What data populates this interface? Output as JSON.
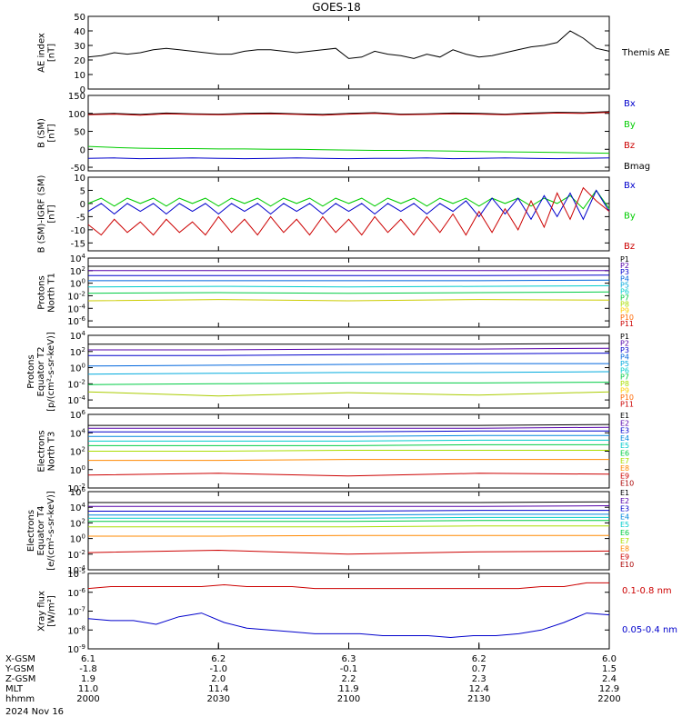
{
  "title": "GOES-18",
  "panels": [
    {
      "id": "ae",
      "ylabel": [
        "AE index",
        "[nT]"
      ],
      "ylim": [
        0,
        50
      ],
      "log": false,
      "yticks": [
        "0",
        "10",
        "20",
        "30",
        "40",
        "50"
      ],
      "legend": [
        {
          "text": "Themis AE",
          "color": "#000000"
        }
      ],
      "series": [
        {
          "name": "Themis AE",
          "color": "#000000",
          "values": [
            22,
            23,
            25,
            24,
            25,
            27,
            28,
            27,
            26,
            25,
            24,
            24,
            26,
            27,
            27,
            26,
            25,
            26,
            27,
            28,
            21,
            22,
            26,
            24,
            23,
            21,
            24,
            22,
            27,
            24,
            22,
            23,
            25,
            27,
            29,
            30,
            32,
            40,
            35,
            28,
            26
          ]
        }
      ]
    },
    {
      "id": "bsm",
      "ylabel": [
        "B (SM)",
        "[nT]"
      ],
      "ylim": [
        -60,
        150
      ],
      "log": false,
      "yticks": [
        "-50",
        "0",
        "50",
        "100",
        "150"
      ],
      "legend": [
        {
          "text": "Bx",
          "color": "#0000cc"
        },
        {
          "text": "By",
          "color": "#00cc00"
        },
        {
          "text": "Bz",
          "color": "#cc0000"
        },
        {
          "text": "Bmag",
          "color": "#000000"
        }
      ],
      "series": [
        {
          "name": "Bx",
          "color": "#0000cc",
          "values": [
            -25,
            -24,
            -26,
            -25,
            -24,
            -25,
            -26,
            -25,
            -24,
            -25,
            -26,
            -25,
            -25,
            -24,
            -26,
            -25,
            -24,
            -25,
            -26,
            -25,
            -24
          ]
        },
        {
          "name": "By",
          "color": "#00cc00",
          "values": [
            8,
            5,
            3,
            2,
            2,
            1,
            1,
            0,
            0,
            -1,
            -2,
            -3,
            -3,
            -4,
            -5,
            -6,
            -7,
            -8,
            -9,
            -10,
            -11
          ]
        },
        {
          "name": "Bmag",
          "color": "#000000",
          "values": [
            98,
            100,
            97,
            101,
            99,
            98,
            100,
            101,
            99,
            97,
            100,
            102,
            98,
            99,
            101,
            100,
            98,
            101,
            103,
            102,
            105
          ]
        },
        {
          "name": "Bz",
          "color": "#cc0000",
          "values": [
            96,
            98,
            95,
            99,
            97,
            96,
            98,
            99,
            97,
            95,
            98,
            100,
            96,
            97,
            99,
            98,
            96,
            99,
            101,
            100,
            103
          ]
        }
      ]
    },
    {
      "id": "bigrf",
      "ylabel": [
        "B (SM)-IGRF (SM)",
        "[nT]"
      ],
      "ylim": [
        -18,
        10
      ],
      "log": false,
      "yticks": [
        "-15",
        "-10",
        "-5",
        "0",
        "5",
        "10"
      ],
      "legend": [
        {
          "text": "Bx",
          "color": "#0000cc"
        },
        {
          "text": "By",
          "color": "#00cc00"
        },
        {
          "text": "Bz",
          "color": "#cc0000"
        }
      ],
      "series": [
        {
          "name": "By",
          "color": "#00cc00",
          "values": [
            0,
            2,
            -1,
            2,
            0,
            2,
            -1,
            2,
            0,
            2,
            -1,
            2,
            0,
            2,
            -1,
            2,
            0,
            2,
            -1,
            2,
            0,
            2,
            -1,
            2,
            0,
            2,
            -1,
            2,
            0,
            2,
            -1,
            2,
            0,
            2,
            -1,
            2,
            0,
            3,
            -2,
            5,
            -2
          ]
        },
        {
          "name": "Bx",
          "color": "#0000cc",
          "values": [
            -3,
            0,
            -4,
            0,
            -3,
            0,
            -4,
            0,
            -3,
            0,
            -4,
            0,
            -3,
            0,
            -4,
            0,
            -3,
            0,
            -4,
            0,
            -3,
            0,
            -4,
            0,
            -3,
            0,
            -4,
            0,
            -3,
            1,
            -5,
            2,
            -4,
            2,
            -6,
            3,
            -5,
            4,
            -6,
            5,
            -3
          ]
        },
        {
          "name": "Bz",
          "color": "#cc0000",
          "values": [
            -8,
            -12,
            -6,
            -11,
            -7,
            -12,
            -6,
            -11,
            -7,
            -12,
            -5,
            -11,
            -6,
            -12,
            -5,
            -11,
            -6,
            -12,
            -5,
            -11,
            -6,
            -12,
            -5,
            -11,
            -6,
            -12,
            -5,
            -11,
            -4,
            -12,
            -3,
            -11,
            -2,
            -10,
            1,
            -9,
            4,
            -6,
            6,
            1,
            -3
          ]
        }
      ]
    },
    {
      "id": "prot_t1",
      "ylabel": [
        "Protons",
        "North T1"
      ],
      "ylim": [
        -7,
        4
      ],
      "log": true,
      "yticks": [
        "10^-6",
        "10^-4",
        "10^-2",
        "10^0",
        "10^2",
        "10^4"
      ],
      "legend": [
        {
          "text": "P1",
          "color": "#000000"
        },
        {
          "text": "P2",
          "color": "#5500aa"
        },
        {
          "text": "P3",
          "color": "#0000cc"
        },
        {
          "text": "P4",
          "color": "#0066dd"
        },
        {
          "text": "P5",
          "color": "#00aadd"
        },
        {
          "text": "P6",
          "color": "#00cccc"
        },
        {
          "text": "P7",
          "color": "#00cc44"
        },
        {
          "text": "P8",
          "color": "#aadd00"
        },
        {
          "text": "P9",
          "color": "#ffcc00"
        },
        {
          "text": "P10",
          "color": "#ff6600"
        },
        {
          "text": "P11",
          "color": "#cc0000"
        }
      ],
      "series": [
        {
          "name": "P1",
          "color": "#000000",
          "values": [
            2.7,
            2.7,
            2.7,
            2.7,
            2.7
          ]
        },
        {
          "name": "P2",
          "color": "#5500aa",
          "values": [
            2.0,
            2.0,
            2.0,
            2.0,
            2.0
          ]
        },
        {
          "name": "P3",
          "color": "#0000cc",
          "values": [
            1.2,
            1.2,
            1.2,
            1.2,
            1.3
          ]
        },
        {
          "name": "P4",
          "color": "#0066dd",
          "values": [
            0.4,
            0.4,
            0.4,
            0.4,
            0.5
          ]
        },
        {
          "name": "P5",
          "color": "#00cccc",
          "values": [
            -0.6,
            -0.5,
            -0.6,
            -0.5,
            -0.4
          ]
        },
        {
          "name": "P6",
          "color": "#00cc44",
          "values": [
            -1.6,
            -1.5,
            -1.6,
            -1.5,
            -1.4
          ]
        },
        {
          "name": "P8",
          "color": "#cccc00",
          "values": [
            -2.8,
            -2.6,
            -2.8,
            -2.6,
            -2.7
          ]
        }
      ]
    },
    {
      "id": "prot_t2",
      "ylabel": [
        "Protons",
        "Equator T2",
        "[p/(cm²-s-sr-keV)]"
      ],
      "ylim": [
        -5,
        4
      ],
      "log": true,
      "yticks": [
        "10^-4",
        "10^-2",
        "10^0",
        "10^2",
        "10^4"
      ],
      "legend": [
        {
          "text": "P1",
          "color": "#000000"
        },
        {
          "text": "P2",
          "color": "#5500aa"
        },
        {
          "text": "P3",
          "color": "#0000cc"
        },
        {
          "text": "P4",
          "color": "#0066dd"
        },
        {
          "text": "P5",
          "color": "#00aadd"
        },
        {
          "text": "P6",
          "color": "#00cccc"
        },
        {
          "text": "P7",
          "color": "#00cc44"
        },
        {
          "text": "P8",
          "color": "#aadd00"
        },
        {
          "text": "P9",
          "color": "#ffcc00"
        },
        {
          "text": "P10",
          "color": "#ff6600"
        },
        {
          "text": "P11",
          "color": "#cc0000"
        }
      ],
      "series": [
        {
          "name": "P1",
          "color": "#000000",
          "values": [
            2.9,
            2.9,
            2.9,
            2.9,
            3.0
          ]
        },
        {
          "name": "P2",
          "color": "#5500aa",
          "values": [
            2.2,
            2.2,
            2.3,
            2.3,
            2.4
          ]
        },
        {
          "name": "P3",
          "color": "#0000cc",
          "values": [
            1.5,
            1.5,
            1.6,
            1.7,
            1.8
          ]
        },
        {
          "name": "P4",
          "color": "#0066dd",
          "values": [
            0.2,
            0.3,
            0.4,
            0.5,
            0.5
          ]
        },
        {
          "name": "P5",
          "color": "#00aadd",
          "values": [
            -0.8,
            -0.7,
            -0.6,
            -0.6,
            -0.5
          ]
        },
        {
          "name": "P6",
          "color": "#00cc44",
          "values": [
            -2.1,
            -2.0,
            -1.9,
            -1.9,
            -1.8
          ]
        },
        {
          "name": "P8",
          "color": "#aacc00",
          "values": [
            -3.0,
            -3.5,
            -3.1,
            -3.4,
            -3.0
          ]
        }
      ]
    },
    {
      "id": "elec_t3",
      "ylabel": [
        "Electrons",
        "North T3"
      ],
      "ylim": [
        -2,
        6
      ],
      "log": true,
      "yticks": [
        "10^-2",
        "10^0",
        "10^2",
        "10^4",
        "10^6"
      ],
      "legend": [
        {
          "text": "E1",
          "color": "#000000"
        },
        {
          "text": "E2",
          "color": "#5500aa"
        },
        {
          "text": "E3",
          "color": "#0000cc"
        },
        {
          "text": "E4",
          "color": "#0088dd"
        },
        {
          "text": "E5",
          "color": "#00cccc"
        },
        {
          "text": "E6",
          "color": "#00cc44"
        },
        {
          "text": "E7",
          "color": "#aadd00"
        },
        {
          "text": "E8",
          "color": "#ff8800"
        },
        {
          "text": "E9",
          "color": "#cc0000"
        },
        {
          "text": "E10",
          "color": "#aa0000"
        }
      ],
      "series": [
        {
          "name": "E1",
          "color": "#000000",
          "values": [
            4.8,
            4.8,
            4.8,
            4.8,
            4.9
          ]
        },
        {
          "name": "E2",
          "color": "#5500aa",
          "values": [
            4.5,
            4.5,
            4.5,
            4.5,
            4.6
          ]
        },
        {
          "name": "E3",
          "color": "#0000cc",
          "values": [
            4.1,
            4.1,
            4.1,
            4.2,
            4.2
          ]
        },
        {
          "name": "E4",
          "color": "#0088dd",
          "values": [
            3.6,
            3.6,
            3.6,
            3.7,
            3.7
          ]
        },
        {
          "name": "E5",
          "color": "#00cccc",
          "values": [
            3.1,
            3.1,
            3.1,
            3.2,
            3.2
          ]
        },
        {
          "name": "E6",
          "color": "#00cc44",
          "values": [
            2.6,
            2.6,
            2.6,
            2.7,
            2.7
          ]
        },
        {
          "name": "E7",
          "color": "#aadd00",
          "values": [
            2.0,
            2.0,
            2.1,
            2.1,
            2.1
          ]
        },
        {
          "name": "E8",
          "color": "#ff8800",
          "values": [
            1.0,
            1.0,
            1.1,
            1.1,
            1.1
          ]
        },
        {
          "name": "E9",
          "color": "#cc0000",
          "values": [
            -0.6,
            -0.4,
            -0.7,
            -0.4,
            -0.5
          ]
        }
      ]
    },
    {
      "id": "elec_t4",
      "ylabel": [
        "Electrons",
        "Equator T4",
        "[e/(cm²-s-sr-keV)]"
      ],
      "ylim": [
        -4,
        6
      ],
      "log": true,
      "yticks": [
        "10^-4",
        "10^-2",
        "10^0",
        "10^2",
        "10^4",
        "10^6"
      ],
      "legend": [
        {
          "text": "E1",
          "color": "#000000"
        },
        {
          "text": "E2",
          "color": "#5500aa"
        },
        {
          "text": "E3",
          "color": "#0000cc"
        },
        {
          "text": "E4",
          "color": "#0088dd"
        },
        {
          "text": "E5",
          "color": "#00cccc"
        },
        {
          "text": "E6",
          "color": "#00cc44"
        },
        {
          "text": "E7",
          "color": "#aadd00"
        },
        {
          "text": "E8",
          "color": "#ff8800"
        },
        {
          "text": "E9",
          "color": "#cc0000"
        },
        {
          "text": "E10",
          "color": "#aa0000"
        }
      ],
      "series": [
        {
          "name": "E1",
          "color": "#000000",
          "values": [
            4.6,
            4.6,
            4.6,
            4.6,
            4.7
          ]
        },
        {
          "name": "E2",
          "color": "#5500aa",
          "values": [
            4.1,
            4.1,
            4.1,
            4.1,
            4.2
          ]
        },
        {
          "name": "E3",
          "color": "#0000cc",
          "values": [
            3.5,
            3.5,
            3.5,
            3.6,
            3.6
          ]
        },
        {
          "name": "E4",
          "color": "#0088dd",
          "values": [
            3.0,
            3.0,
            3.0,
            3.1,
            3.1
          ]
        },
        {
          "name": "E5",
          "color": "#00cccc",
          "values": [
            2.6,
            2.6,
            2.6,
            2.7,
            2.7
          ]
        },
        {
          "name": "E6",
          "color": "#00cc44",
          "values": [
            2.2,
            2.2,
            2.2,
            2.3,
            2.3
          ]
        },
        {
          "name": "E7",
          "color": "#aadd00",
          "values": [
            1.5,
            1.5,
            1.5,
            1.6,
            1.6
          ]
        },
        {
          "name": "E8",
          "color": "#ff8800",
          "values": [
            0.3,
            0.3,
            0.4,
            0.4,
            0.4
          ]
        },
        {
          "name": "E9",
          "color": "#cc0000",
          "values": [
            -1.8,
            -1.5,
            -2.0,
            -1.7,
            -1.6
          ]
        }
      ]
    },
    {
      "id": "xray",
      "ylabel": [
        "Xray flux",
        "[W/m²]"
      ],
      "ylim": [
        -9,
        -5
      ],
      "log": true,
      "yticks": [
        "10^-9",
        "10^-8",
        "10^-7",
        "10^-6",
        "10^-5"
      ],
      "legend": [
        {
          "text": "0.1-0.8 nm",
          "color": "#cc0000"
        },
        {
          "text": "0.05-0.4 nm",
          "color": "#0000cc"
        }
      ],
      "series": [
        {
          "name": "0.1-0.8 nm",
          "color": "#cc0000",
          "values": [
            -5.8,
            -5.7,
            -5.7,
            -5.7,
            -5.7,
            -5.7,
            -5.6,
            -5.7,
            -5.7,
            -5.7,
            -5.8,
            -5.8,
            -5.8,
            -5.8,
            -5.8,
            -5.8,
            -5.8,
            -5.8,
            -5.8,
            -5.8,
            -5.7,
            -5.7,
            -5.5,
            -5.5
          ]
        },
        {
          "name": "0.05-0.4 nm",
          "color": "#0000cc",
          "values": [
            -7.4,
            -7.5,
            -7.5,
            -7.7,
            -7.3,
            -7.1,
            -7.6,
            -7.9,
            -8.0,
            -8.1,
            -8.2,
            -8.2,
            -8.2,
            -8.3,
            -8.3,
            -8.3,
            -8.4,
            -8.3,
            -8.3,
            -8.2,
            -8.0,
            -7.6,
            -7.1,
            -7.2
          ]
        }
      ]
    }
  ],
  "xaxis": {
    "rows": [
      {
        "label": "X-GSM",
        "values": [
          "6.1",
          "6.2",
          "6.3",
          "6.2",
          "6.0"
        ]
      },
      {
        "label": "Y-GSM",
        "values": [
          "-1.8",
          "-1.0",
          "-0.1",
          "0.7",
          "1.5"
        ]
      },
      {
        "label": "Z-GSM",
        "values": [
          "1.9",
          "2.0",
          "2.2",
          "2.3",
          "2.4"
        ]
      },
      {
        "label": "MLT",
        "values": [
          "11.0",
          "11.4",
          "11.9",
          "12.4",
          "12.9"
        ]
      },
      {
        "label": "hhmm",
        "values": [
          "2000",
          "2030",
          "2100",
          "2130",
          "2200"
        ]
      }
    ],
    "date": "2024 Nov 16"
  }
}
